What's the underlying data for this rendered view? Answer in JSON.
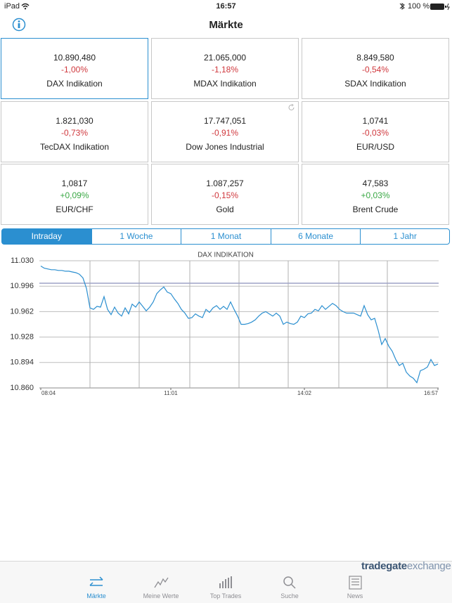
{
  "status_bar": {
    "device": "iPad",
    "time": "16:57",
    "battery": "100 %"
  },
  "nav": {
    "title": "Märkte"
  },
  "tiles": [
    {
      "value": "10.890,480",
      "change": "-1,00%",
      "name": "DAX Indikation"
    },
    {
      "value": "21.065,000",
      "change": "-1,18%",
      "name": "MDAX Indikation"
    },
    {
      "value": "8.849,580",
      "change": "-0,54%",
      "name": "SDAX Indikation"
    },
    {
      "value": "1.821,030",
      "change": "-0,73%",
      "name": "TecDAX Indikation"
    },
    {
      "value": "17.747,051",
      "change": "-0,91%",
      "name": "Dow Jones Industrial"
    },
    {
      "value": "1,0741",
      "change": "-0,03%",
      "name": "EUR/USD"
    },
    {
      "value": "1,0817",
      "change": "+0,09%",
      "name": "EUR/CHF"
    },
    {
      "value": "1.087,257",
      "change": "-0,15%",
      "name": "Gold"
    },
    {
      "value": "47,583",
      "change": "+0,03%",
      "name": "Brent Crude"
    }
  ],
  "periods": [
    "Intraday",
    "1 Woche",
    "1 Monat",
    "6 Monate",
    "1 Jahr"
  ],
  "chart_data": {
    "type": "line",
    "title": "DAX INDIKATION",
    "color": "#2b8fd0",
    "categories": [
      "08:04",
      null,
      null,
      null,
      null,
      null,
      null,
      null,
      null,
      null,
      null,
      null,
      null,
      null,
      null,
      null,
      null,
      null,
      null,
      null,
      null,
      null,
      null,
      null,
      null,
      null,
      null,
      null,
      null,
      null,
      null,
      null,
      null,
      null,
      null,
      null,
      null,
      "11:01",
      null,
      null,
      null,
      null,
      null,
      null,
      null,
      null,
      null,
      null,
      null,
      null,
      null,
      null,
      null,
      null,
      null,
      null,
      null,
      null,
      null,
      null,
      null,
      null,
      null,
      null,
      null,
      null,
      null,
      null,
      null,
      null,
      null,
      null,
      null,
      null,
      null,
      "14:02",
      null,
      null,
      null,
      null,
      null,
      null,
      null,
      null,
      null,
      null,
      null,
      null,
      null,
      null,
      null,
      null,
      null,
      null,
      null,
      null,
      null,
      null,
      null,
      null,
      null,
      null,
      null,
      null,
      null,
      null,
      null,
      null,
      null,
      null,
      null,
      null,
      null,
      "16:57"
    ],
    "values": [
      11023,
      11020,
      11019,
      11018,
      11018,
      11017,
      11017,
      11016,
      11016,
      11015,
      11014,
      11012,
      11007,
      10993,
      10967,
      10965,
      10969,
      10968,
      10982,
      10965,
      10958,
      10968,
      10960,
      10956,
      10967,
      10959,
      10972,
      10968,
      10975,
      10969,
      10963,
      10968,
      10975,
      10986,
      10991,
      10995,
      10988,
      10986,
      10979,
      10973,
      10965,
      10960,
      10953,
      10954,
      10959,
      10956,
      10954,
      10965,
      10961,
      10967,
      10970,
      10965,
      10969,
      10965,
      10975,
      10965,
      10956,
      10945,
      10945,
      10946,
      10948,
      10951,
      10956,
      10960,
      10962,
      10959,
      10956,
      10960,
      10956,
      10945,
      10948,
      10946,
      10945,
      10948,
      10956,
      10954,
      10959,
      10960,
      10965,
      10963,
      10970,
      10965,
      10969,
      10973,
      10970,
      10965,
      10962,
      10960,
      10960,
      10960,
      10958,
      10956,
      10970,
      10958,
      10951,
      10953,
      10937,
      10918,
      10926,
      10916,
      10909,
      10898,
      10890,
      10893,
      10881,
      10876,
      10873,
      10867,
      10883,
      10885,
      10888,
      10898,
      10890,
      10892
    ],
    "reference_line": 11000,
    "ylim": [
      10860,
      11030
    ],
    "yticks": [
      {
        "value": 10860,
        "label": "10.860"
      },
      {
        "value": 10894,
        "label": "10.894"
      },
      {
        "value": 10928,
        "label": "10.928"
      },
      {
        "value": 10962,
        "label": "10.962"
      },
      {
        "value": 10996,
        "label": "10.996"
      },
      {
        "value": 11030,
        "label": "11.030"
      }
    ],
    "grid": true
  },
  "tabs": [
    "Märkte",
    "Meine Werte",
    "Top Trades",
    "Suche",
    "News"
  ],
  "logo": {
    "brand": "tradegate",
    "suffix": "exchange"
  }
}
